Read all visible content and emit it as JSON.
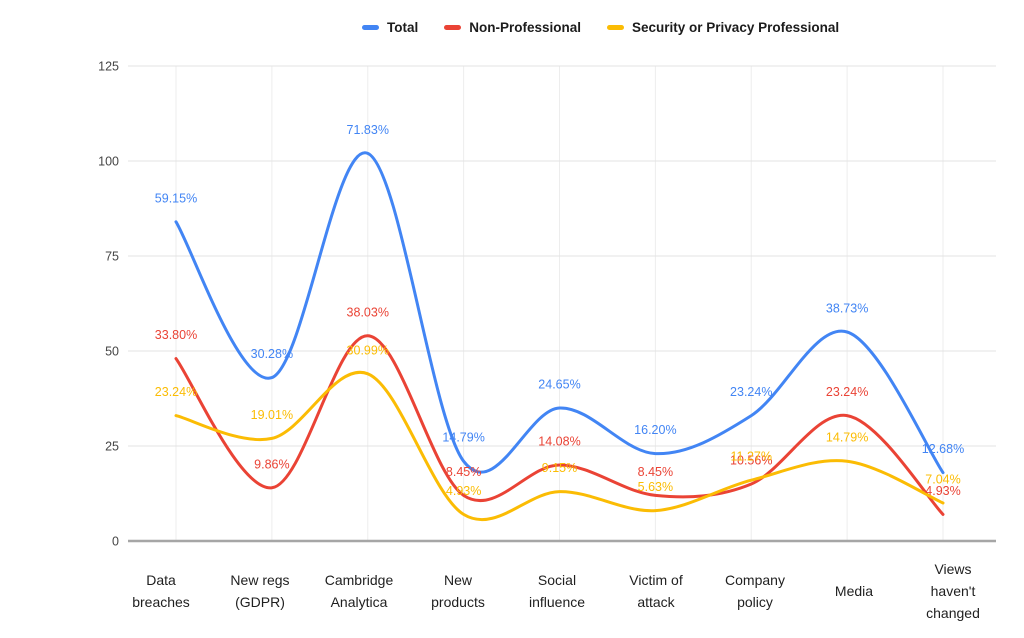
{
  "chart_data": {
    "type": "line",
    "smooth": true,
    "legend_position": "top",
    "grid": true,
    "ylim": [
      0,
      125
    ],
    "y_ticks": [
      0,
      25,
      50,
      75,
      100,
      125
    ],
    "categories": [
      "Data breaches",
      "New regs (GDPR)",
      "Cambridge Analytica",
      "New products",
      "Social influence",
      "Victim of attack",
      "Company policy",
      "Media",
      "Views haven't changed"
    ],
    "category_label_lines": [
      [
        "Data",
        "breaches"
      ],
      [
        "New regs",
        "(GDPR)"
      ],
      [
        "Cambridge",
        "Analytica"
      ],
      [
        "New",
        "products"
      ],
      [
        "Social",
        "influence"
      ],
      [
        "Victim of",
        "attack"
      ],
      [
        "Company",
        "policy"
      ],
      [
        "Media"
      ],
      [
        "Views",
        "haven't",
        "changed"
      ]
    ],
    "series": [
      {
        "name": "Total",
        "color": "#4285F4",
        "values": [
          84,
          43,
          102,
          21,
          35,
          23,
          33,
          55,
          18
        ],
        "point_labels": [
          "59.15%",
          "30.28%",
          "71.83%",
          "14.79%",
          "24.65%",
          "16.20%",
          "23.24%",
          "38.73%",
          "12.68%"
        ]
      },
      {
        "name": "Non-Professional",
        "color": "#EA4335",
        "values": [
          48,
          14,
          54,
          12,
          20,
          12,
          15,
          33,
          7
        ],
        "point_labels": [
          "33.80%",
          "9.86%",
          "38.03%",
          "8.45%",
          "14.08%",
          "8.45%",
          "10.56%",
          "23.24%",
          "4.93%"
        ]
      },
      {
        "name": "Security or Privacy Professional",
        "color": "#FBBC04",
        "values": [
          33,
          27,
          44,
          7,
          13,
          8,
          16,
          21,
          10
        ],
        "point_labels": [
          "23.24%",
          "19.01%",
          "30.99%",
          "4.93%",
          "9.15%",
          "5.63%",
          "11.27%",
          "14.79%",
          "7.04%"
        ]
      }
    ]
  }
}
